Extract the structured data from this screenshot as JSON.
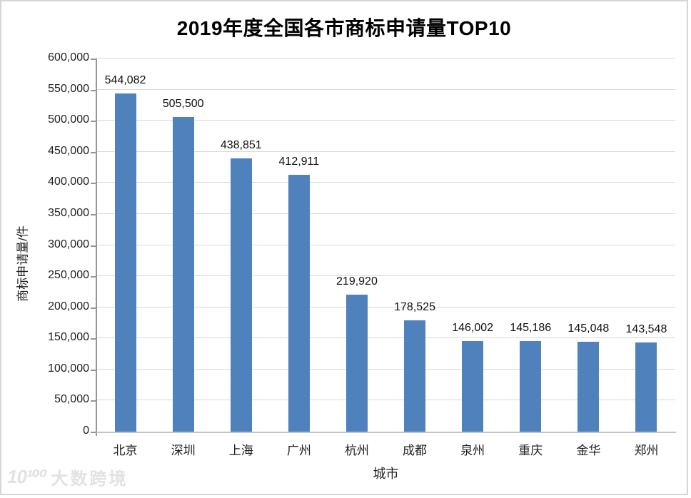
{
  "title": "2019年度全国各市商标申请量TOP10",
  "chart_data": {
    "type": "bar",
    "title": "2019年度全国各市商标申请量TOP10",
    "xlabel": "城市",
    "ylabel": "商标申请量/件",
    "categories": [
      "北京",
      "深圳",
      "上海",
      "广州",
      "杭州",
      "成都",
      "泉州",
      "重庆",
      "金华",
      "郑州"
    ],
    "values": [
      544082,
      505500,
      438851,
      412911,
      219920,
      178525,
      146002,
      145186,
      145048,
      143548
    ],
    "value_labels": [
      "544,082",
      "505,500",
      "438,851",
      "412,911",
      "219,920",
      "178,525",
      "146,002",
      "145,186",
      "145,048",
      "143,548"
    ],
    "ylim": [
      0,
      600000
    ],
    "y_tick_step": 50000,
    "y_ticks": [
      0,
      50000,
      100000,
      150000,
      200000,
      250000,
      300000,
      350000,
      400000,
      450000,
      500000,
      550000,
      600000
    ],
    "y_tick_labels": [
      "0",
      "50,000",
      "100,000",
      "150,000",
      "200,000",
      "250,000",
      "300,000",
      "350,000",
      "400,000",
      "450,000",
      "500,000",
      "550,000",
      "600,000"
    ],
    "grid": true,
    "legend": "none",
    "bar_color": "#4F81BD",
    "gridline_color": "#D9D9D9",
    "axis_color": "#969696"
  },
  "watermark": {
    "logo": "10¹⁰⁰",
    "text": "大数跨境"
  }
}
